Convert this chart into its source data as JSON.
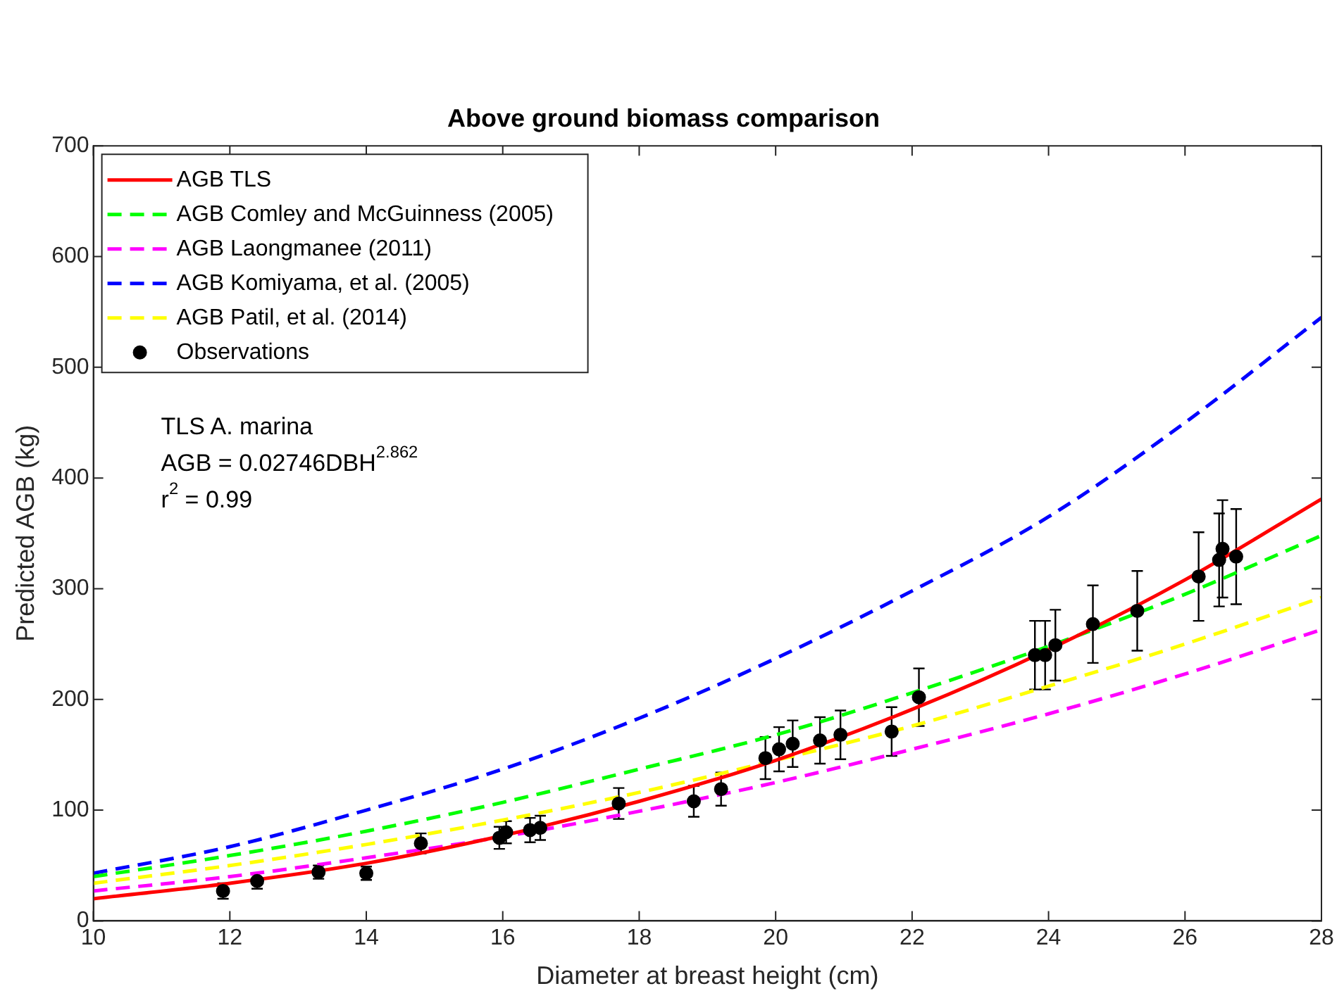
{
  "chart_data": {
    "type": "line",
    "title": "Above ground biomass comparison",
    "xlabel": "Diameter at breast height (cm)",
    "ylabel": "Predicted AGB (kg)",
    "xlim": [
      10,
      28
    ],
    "xticks": [
      10,
      12,
      14,
      16,
      18,
      20,
      22,
      24,
      26,
      28
    ],
    "ylim": [
      0,
      700
    ],
    "yticks": [
      0,
      100,
      200,
      300,
      400,
      500,
      600,
      700
    ],
    "grid": false,
    "legend": "top left",
    "annotations": [
      "TLS A. marina",
      "AGB = 0.02746DBH$^{2.862}$",
      "r$^{2}$ = 0.99"
    ],
    "series": [
      {
        "name": "AGB TLS",
        "type": "line",
        "color": "#ff0000",
        "line_style": "solid",
        "marker": "none",
        "x": [
          10,
          12,
          14,
          16,
          18,
          20,
          22,
          24,
          26,
          28
        ],
        "values": [
          20,
          34,
          52,
          77,
          108,
          145,
          191,
          245,
          308,
          381
        ]
      },
      {
        "name": "AGB Comley and McGuinness (2005)",
        "color": "#00ff00",
        "line_style": "dashed",
        "marker": "none",
        "x": [
          10,
          12,
          14,
          16,
          18,
          20,
          22,
          24,
          26,
          28
        ],
        "values": [
          40,
          59,
          81,
          107,
          137,
          168,
          206,
          248,
          295,
          348
        ]
      },
      {
        "name": "AGB Laongmanee (2011)",
        "color": "#ff00ff",
        "line_style": "dashed",
        "marker": "none",
        "x": [
          10,
          12,
          14,
          16,
          18,
          20,
          22,
          24,
          26,
          28
        ],
        "values": [
          27,
          40,
          57,
          76,
          99,
          125,
          155,
          187,
          223,
          263
        ]
      },
      {
        "name": "AGB Komiyama, et al. (2005)",
        "color": "#0000ff",
        "line_style": "dashed",
        "marker": "none",
        "x": [
          10,
          12,
          14,
          16,
          18,
          20,
          22,
          24,
          26,
          28
        ],
        "values": [
          43,
          67,
          100,
          137,
          183,
          237,
          298,
          365,
          450,
          545
        ]
      },
      {
        "name": "AGB Patil, et al. (2014)",
        "color": "#ffff00",
        "line_style": "dashed",
        "marker": "none",
        "x": [
          10,
          12,
          14,
          16,
          18,
          20,
          22,
          24,
          26,
          28
        ],
        "values": [
          34,
          50,
          69,
          91,
          116,
          145,
          176,
          212,
          250,
          292
        ]
      },
      {
        "name": "Observations",
        "type": "scatter",
        "color": "#000000",
        "x": [
          11.9,
          12.4,
          13.3,
          14.0,
          14.8,
          15.95,
          16.05,
          16.4,
          16.55,
          17.7,
          18.8,
          19.2,
          19.85,
          20.05,
          20.25,
          20.65,
          20.95,
          21.7,
          22.1,
          23.8,
          23.95,
          24.1,
          24.65,
          25.3,
          26.2,
          26.5,
          26.55,
          26.75
        ],
        "values": [
          27,
          36,
          44,
          43,
          70,
          75,
          80,
          82,
          84,
          106,
          108,
          119,
          147,
          155,
          160,
          163,
          168,
          171,
          202,
          240,
          240,
          249,
          268,
          280,
          311,
          326,
          336,
          329
        ],
        "errors": [
          7,
          7,
          6,
          6,
          9,
          10,
          10,
          11,
          11,
          14,
          14,
          15,
          19,
          20,
          21,
          21,
          22,
          22,
          26,
          31,
          31,
          32,
          35,
          36,
          40,
          42,
          44,
          43
        ]
      }
    ]
  }
}
